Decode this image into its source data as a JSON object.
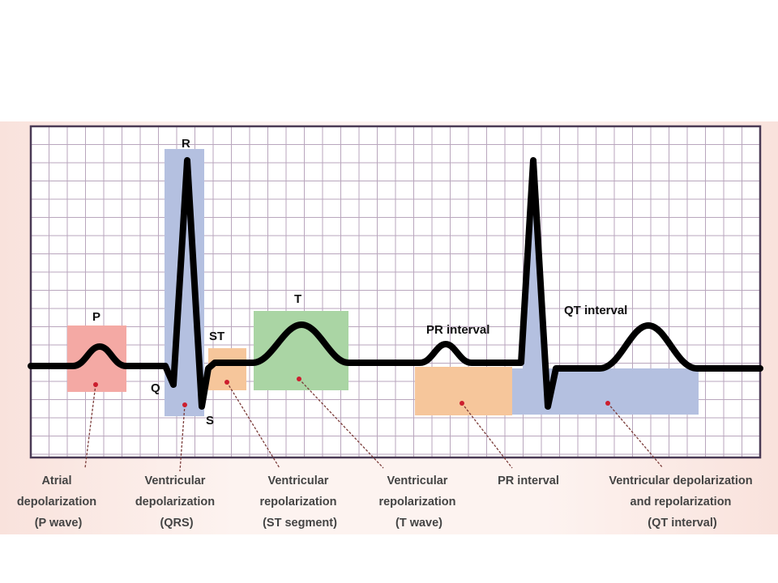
{
  "wave_labels": {
    "p": "P",
    "r": "R",
    "q": "Q",
    "s": "S",
    "st": "ST",
    "t": "T",
    "pr_interval": "PR interval",
    "qt_interval": "QT interval"
  },
  "captions": {
    "atrial": [
      "Atrial",
      "depolarization",
      "(P wave)"
    ],
    "qrs": [
      "Ventricular",
      "depolarization",
      "(QRS)"
    ],
    "st": [
      "Ventricular",
      "repolarization",
      "(ST segment)"
    ],
    "t": [
      "Ventricular",
      "repolarization",
      "(T wave)"
    ],
    "pr": [
      "PR interval"
    ],
    "qt": [
      "Ventricular depolarization",
      "and repolarization",
      "(QT interval)"
    ]
  },
  "colors": {
    "grid_line": "#b9a6bd",
    "grid_border": "#4a3a55",
    "p_box": "#f4a9a4",
    "qrs_box": "#b4c0e0",
    "st_box": "#f6c69b",
    "t_box": "#aad5a4",
    "pr_box": "#f6c69b",
    "qt_box": "#b4c0e0",
    "trace": "#000000",
    "marker": "#cc1e2e"
  }
}
